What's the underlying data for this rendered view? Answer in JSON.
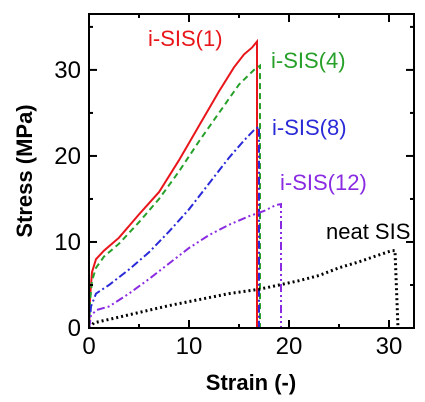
{
  "chart_data": {
    "type": "line",
    "xlabel": "Strain (-)",
    "ylabel": "Stress (MPa)",
    "xlim": [
      0,
      32.5
    ],
    "ylim": [
      0,
      36.5
    ],
    "xticks": [
      0,
      10,
      20,
      30
    ],
    "yticks": [
      0,
      10,
      20,
      30
    ],
    "grid": false,
    "legend": "none",
    "series": [
      {
        "name": "i-SIS(1)",
        "color": "#e8161b",
        "dash": "solid",
        "points": [
          [
            0.02,
            0
          ],
          [
            0.1,
            3.5
          ],
          [
            0.3,
            6.5
          ],
          [
            0.7,
            8
          ],
          [
            1.5,
            9
          ],
          [
            3,
            10.5
          ],
          [
            5,
            13.2
          ],
          [
            7,
            15.8
          ],
          [
            9,
            19.5
          ],
          [
            11,
            23.5
          ],
          [
            13,
            27.5
          ],
          [
            14.5,
            30.3
          ],
          [
            15.5,
            31.8
          ],
          [
            16.3,
            32.6
          ],
          [
            16.8,
            33.3
          ],
          [
            16.8,
            0
          ]
        ]
      },
      {
        "name": "i-SIS(4)",
        "color": "#27a02a",
        "dash": "6,4",
        "points": [
          [
            0.02,
            0
          ],
          [
            0.1,
            3
          ],
          [
            0.3,
            5.5
          ],
          [
            0.7,
            7
          ],
          [
            1.5,
            8.3
          ],
          [
            3,
            9.8
          ],
          [
            5,
            12.3
          ],
          [
            7,
            15
          ],
          [
            9,
            18.2
          ],
          [
            11,
            21.7
          ],
          [
            13,
            25
          ],
          [
            15,
            28.3
          ],
          [
            16.5,
            30
          ],
          [
            17.1,
            30.5
          ],
          [
            17.1,
            0
          ]
        ]
      },
      {
        "name": "i-SIS(8)",
        "color": "#2a2ad8",
        "dash": "8,3,2,3",
        "points": [
          [
            0.02,
            0
          ],
          [
            0.2,
            2.5
          ],
          [
            0.7,
            4
          ],
          [
            2,
            5
          ],
          [
            4,
            6.8
          ],
          [
            6,
            8.8
          ],
          [
            8,
            11.2
          ],
          [
            10,
            13.8
          ],
          [
            12,
            16.8
          ],
          [
            14,
            19.8
          ],
          [
            15.5,
            21.8
          ],
          [
            16.5,
            23
          ],
          [
            17,
            23.4
          ],
          [
            17,
            0
          ]
        ]
      },
      {
        "name": "i-SIS(12)",
        "color": "#8a2be2",
        "dash": "8,3,2,3,2,3",
        "points": [
          [
            0.02,
            0
          ],
          [
            0.2,
            1.5
          ],
          [
            0.8,
            2.1
          ],
          [
            2,
            2.5
          ],
          [
            4,
            4
          ],
          [
            6,
            5.7
          ],
          [
            8,
            7.5
          ],
          [
            10,
            9.3
          ],
          [
            12,
            10.8
          ],
          [
            14,
            12
          ],
          [
            16,
            13
          ],
          [
            17.5,
            13.6
          ],
          [
            18.7,
            14.3
          ],
          [
            19.2,
            14.4
          ],
          [
            19.2,
            0
          ]
        ]
      },
      {
        "name": "neat SIS",
        "color": "#000000",
        "dash": "2,3",
        "points": [
          [
            0,
            0
          ],
          [
            0.5,
            0.6
          ],
          [
            2,
            1
          ],
          [
            5,
            1.8
          ],
          [
            8,
            2.6
          ],
          [
            11,
            3.3
          ],
          [
            14,
            4
          ],
          [
            17,
            4.5
          ],
          [
            19,
            5
          ],
          [
            21,
            5.5
          ],
          [
            23,
            6.1
          ],
          [
            25,
            7
          ],
          [
            27,
            7.7
          ],
          [
            29,
            8.5
          ],
          [
            30.3,
            9
          ],
          [
            30.6,
            9
          ],
          [
            30.9,
            0
          ]
        ]
      }
    ]
  }
}
